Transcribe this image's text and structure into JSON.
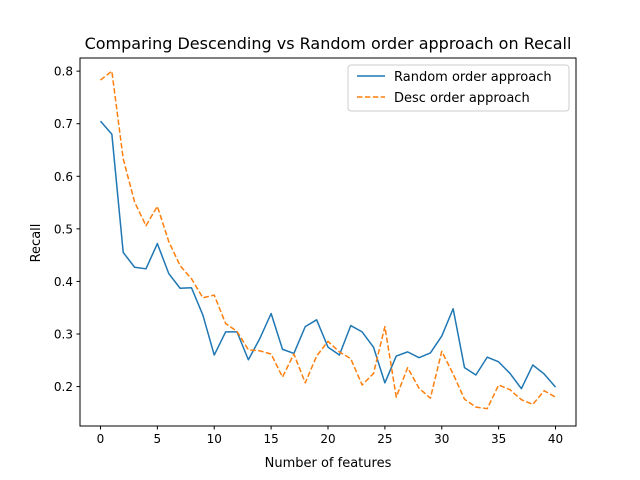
{
  "chart_data": {
    "type": "line",
    "title": "Comparing Descending vs Random order approach on Recall",
    "xlabel": "Number of features",
    "ylabel": "Recall",
    "xlim": [
      -1.8,
      41.8
    ],
    "ylim": [
      0.125,
      0.825
    ],
    "xticks": [
      0,
      5,
      10,
      15,
      20,
      25,
      30,
      35,
      40
    ],
    "yticks": [
      0.2,
      0.3,
      0.4,
      0.5,
      0.6,
      0.7,
      0.8
    ],
    "grid": false,
    "legend_position": "top-right",
    "x": [
      0,
      1,
      2,
      3,
      4,
      5,
      6,
      7,
      8,
      9,
      10,
      11,
      12,
      13,
      14,
      15,
      16,
      17,
      18,
      19,
      20,
      21,
      22,
      23,
      24,
      25,
      26,
      27,
      28,
      29,
      30,
      31,
      32,
      33,
      34,
      35,
      36,
      37,
      38,
      39,
      40
    ],
    "series": [
      {
        "name": "Random order approach",
        "color": "#1f77b4",
        "style": "solid",
        "values": [
          0.705,
          0.68,
          0.455,
          0.427,
          0.424,
          0.472,
          0.415,
          0.387,
          0.388,
          0.336,
          0.26,
          0.304,
          0.304,
          0.251,
          0.291,
          0.339,
          0.271,
          0.263,
          0.314,
          0.327,
          0.275,
          0.26,
          0.316,
          0.304,
          0.275,
          0.207,
          0.258,
          0.266,
          0.255,
          0.264,
          0.296,
          0.348,
          0.236,
          0.222,
          0.256,
          0.247,
          0.225,
          0.196,
          0.241,
          0.224,
          0.199
        ]
      },
      {
        "name": "Desc order approach",
        "color": "#ff7f0e",
        "style": "dashed",
        "values": [
          0.783,
          0.8,
          0.633,
          0.551,
          0.506,
          0.543,
          0.476,
          0.43,
          0.405,
          0.369,
          0.374,
          0.32,
          0.305,
          0.27,
          0.268,
          0.262,
          0.218,
          0.262,
          0.207,
          0.258,
          0.286,
          0.266,
          0.253,
          0.203,
          0.225,
          0.314,
          0.18,
          0.236,
          0.197,
          0.178,
          0.267,
          0.224,
          0.176,
          0.161,
          0.158,
          0.203,
          0.194,
          0.175,
          0.166,
          0.192,
          0.18
        ]
      }
    ]
  }
}
